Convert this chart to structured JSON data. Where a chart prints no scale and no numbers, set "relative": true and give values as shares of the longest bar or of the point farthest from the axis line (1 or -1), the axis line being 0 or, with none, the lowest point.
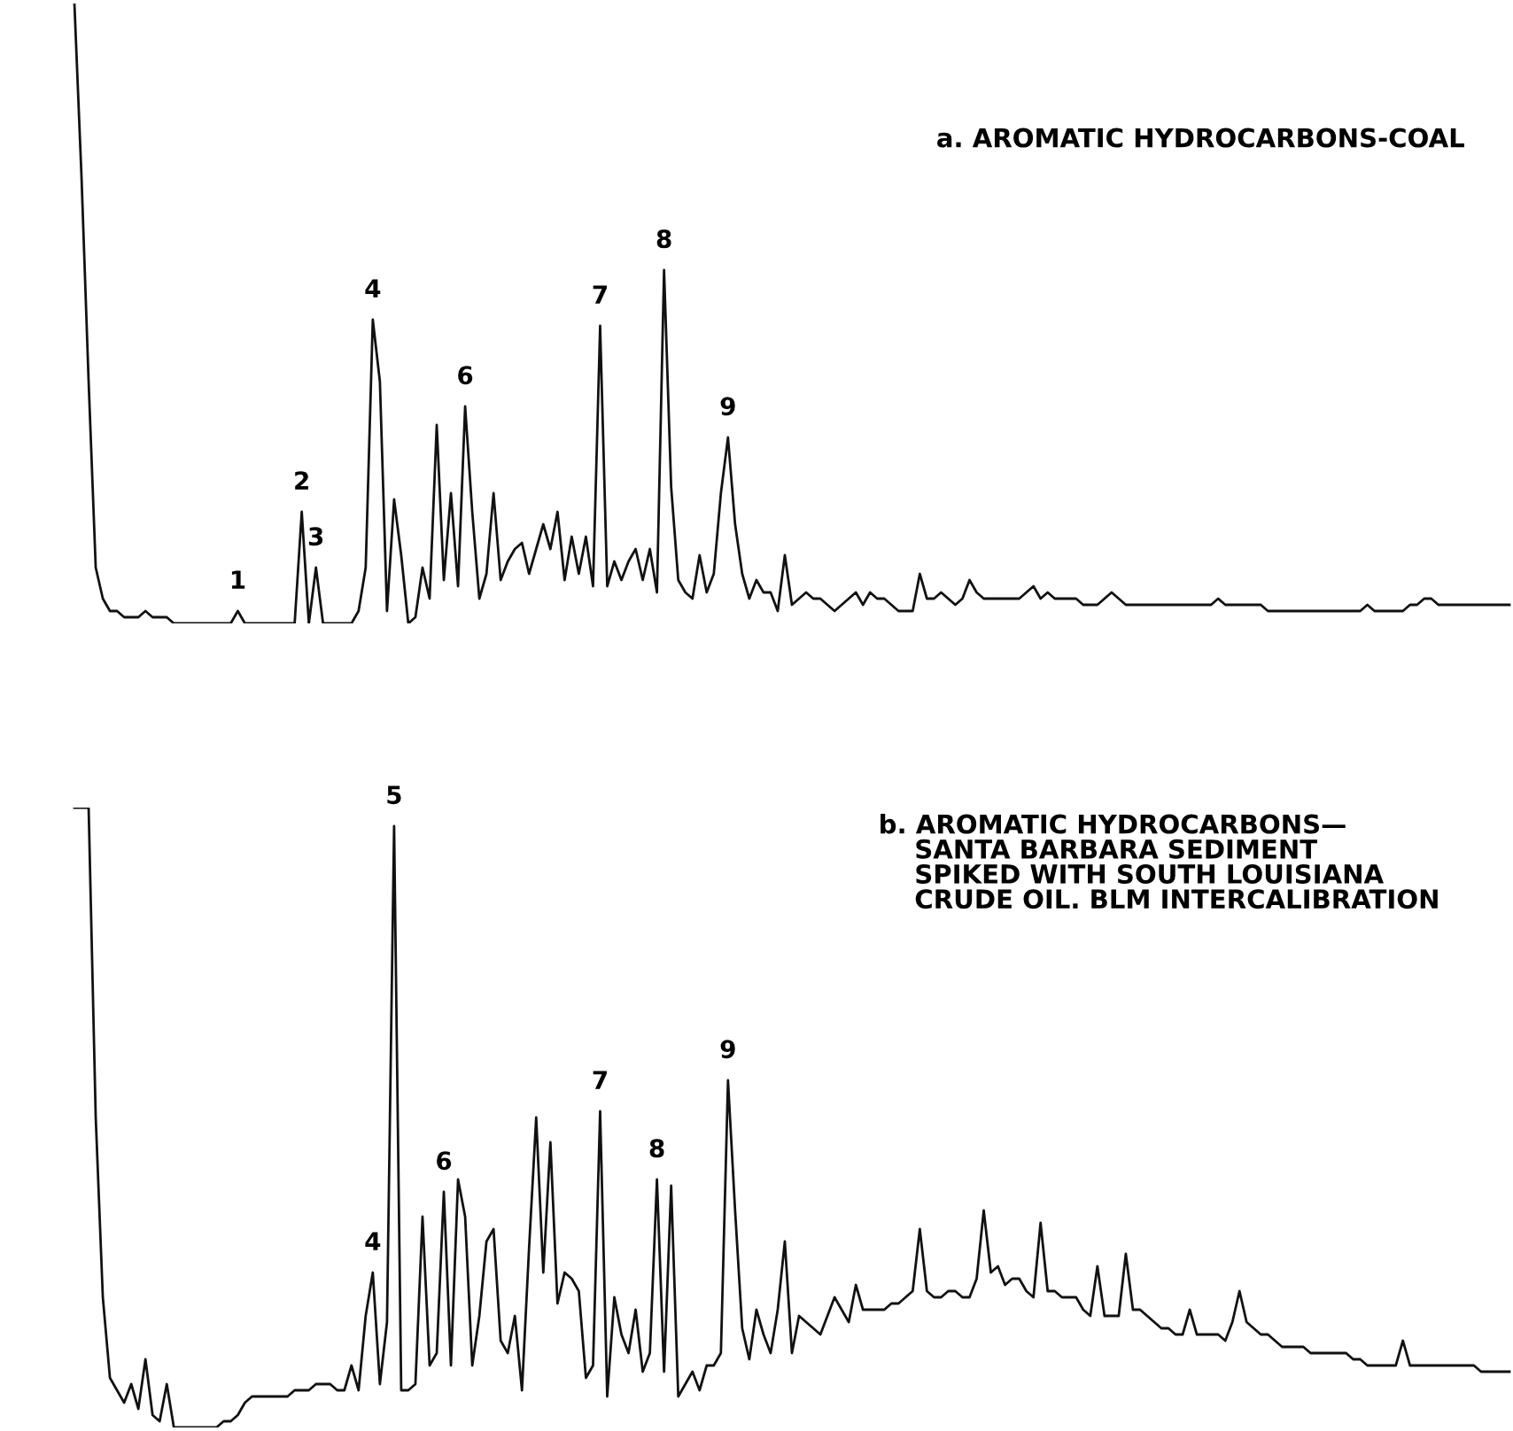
{
  "chart_data": [
    {
      "type": "line",
      "title": "a. AROMATIC HYDROCARBONS-COAL",
      "relative": true,
      "color": "#111111",
      "annotations": [
        {
          "text": "1",
          "y": 0.02
        },
        {
          "text": "2",
          "y": 0.18
        },
        {
          "text": "3",
          "y": 0.09
        },
        {
          "text": "4",
          "y": 0.49
        },
        {
          "text": "6",
          "y": 0.35
        },
        {
          "text": "7",
          "y": 0.48
        },
        {
          "text": "8",
          "y": 0.57
        },
        {
          "text": "9",
          "y": 0.3
        }
      ],
      "categories": [
        null,
        null,
        null,
        null,
        null,
        null,
        null,
        null,
        null,
        null,
        null,
        null,
        null,
        null,
        null,
        null,
        null,
        null,
        null,
        null,
        null,
        null,
        null,
        null,
        null,
        null,
        null,
        null,
        null,
        null,
        null,
        null,
        null,
        null,
        null,
        null,
        null,
        null,
        null,
        null,
        null,
        null,
        null,
        null,
        null,
        null,
        null,
        null,
        null,
        null,
        null,
        null,
        null,
        null,
        null,
        null,
        null,
        null,
        null,
        null,
        null,
        null,
        null,
        null,
        null,
        null,
        null,
        null,
        null,
        null,
        null,
        null,
        null,
        null,
        null,
        null,
        null,
        null,
        null,
        null,
        null,
        null,
        null,
        null,
        null,
        null,
        null,
        null,
        null,
        null,
        null,
        null,
        null,
        null,
        null,
        null,
        null,
        null,
        null,
        null,
        null,
        null,
        null,
        null,
        null,
        null,
        null,
        null,
        null,
        null,
        null,
        null,
        null,
        null,
        null,
        null,
        null,
        null,
        null,
        null,
        null,
        null,
        null,
        null,
        null,
        null,
        null,
        null,
        null,
        null,
        null,
        null,
        null,
        null,
        null,
        null,
        null,
        null,
        null,
        null,
        null,
        null,
        null,
        null,
        null,
        null,
        null,
        null,
        null,
        null,
        null,
        null,
        null,
        null,
        null,
        null,
        null,
        null,
        null,
        null,
        null,
        null,
        null,
        null,
        null,
        null,
        null,
        null,
        null,
        null,
        null,
        null,
        null,
        null,
        null,
        null,
        null,
        null,
        null,
        null,
        null,
        null,
        null,
        null,
        null,
        null,
        null,
        null,
        null,
        null,
        null,
        null,
        null,
        null,
        null,
        null,
        null,
        null,
        null,
        null,
        null,
        null,
        null
      ],
      "values": [
        1.0,
        0.72,
        0.39,
        0.09,
        0.04,
        0.02,
        0.02,
        0.01,
        0.01,
        0.01,
        0.02,
        0.01,
        0.01,
        0.01,
        0,
        0,
        0,
        0,
        0,
        0,
        0,
        0,
        0,
        0.02,
        0,
        0,
        0,
        0,
        0,
        0,
        0,
        0,
        0.18,
        0,
        0.09,
        0,
        0,
        0,
        0,
        0,
        0.02,
        0.09,
        0.49,
        0.39,
        0.02,
        0.2,
        0.11,
        0,
        0.01,
        0.09,
        0.04,
        0.32,
        0.07,
        0.21,
        0.06,
        0.35,
        0.18,
        0.04,
        0.08,
        0.21,
        0.07,
        0.1,
        0.12,
        0.13,
        0.08,
        0.12,
        0.16,
        0.12,
        0.18,
        0.07,
        0.14,
        0.08,
        0.14,
        0.06,
        0.48,
        0.06,
        0.1,
        0.07,
        0.1,
        0.12,
        0.07,
        0.12,
        0.05,
        0.57,
        0.22,
        0.07,
        0.05,
        0.04,
        0.11,
        0.05,
        0.08,
        0.21,
        0.3,
        0.16,
        0.08,
        0.04,
        0.07,
        0.05,
        0.05,
        0.02,
        0.11,
        0.03,
        0.04,
        0.05,
        0.04,
        0.04,
        0.03,
        0.02,
        0.03,
        0.04,
        0.05,
        0.03,
        0.05,
        0.04,
        0.04,
        0.03,
        0.02,
        0.02,
        0.02,
        0.08,
        0.04,
        0.04,
        0.05,
        0.04,
        0.03,
        0.04,
        0.07,
        0.05,
        0.04,
        0.04,
        0.04,
        0.04,
        0.04,
        0.04,
        0.05,
        0.06,
        0.04,
        0.05,
        0.04,
        0.04,
        0.04,
        0.04,
        0.03,
        0.03,
        0.03,
        0.04,
        0.05,
        0.04,
        0.03,
        0.03,
        0.03,
        0.03,
        0.03,
        0.03,
        0.03,
        0.03,
        0.03,
        0.03,
        0.03,
        0.03,
        0.03,
        0.04,
        0.03,
        0.03,
        0.03,
        0.03,
        0.03,
        0.03,
        0.02,
        0.02,
        0.02,
        0.02,
        0.02,
        0.02,
        0.02,
        0.02,
        0.02,
        0.02,
        0.02,
        0.02,
        0.02,
        0.02,
        0.03,
        0.02,
        0.02,
        0.02,
        0.02,
        0.02,
        0.03,
        0.03,
        0.04,
        0.04,
        0.03,
        0.03,
        0.03,
        0.03,
        0.03,
        0.03,
        0.03,
        0.03,
        0.03,
        0.03,
        0.03
      ]
    },
    {
      "type": "line",
      "title": "b. AROMATIC HYDROCARBONS—\n    SANTA BARBARA SEDIMENT\n    SPIKED WITH SOUTH LOUISIANA\n    CRUDE OIL. BLM INTERCALIBRATION",
      "relative": true,
      "color": "#111111",
      "annotations": [
        {
          "text": "4",
          "y": 0.25
        },
        {
          "text": "5",
          "y": 0.97
        },
        {
          "text": "6",
          "y": 0.38
        },
        {
          "text": "7",
          "y": 0.51
        },
        {
          "text": "8",
          "y": 0.4
        },
        {
          "text": "9",
          "y": 0.56
        }
      ],
      "categories": [
        null,
        null,
        null,
        null,
        null,
        null,
        null,
        null,
        null,
        null,
        null,
        null,
        null,
        null,
        null,
        null,
        null,
        null,
        null,
        null,
        null,
        null,
        null,
        null,
        null,
        null,
        null,
        null,
        null,
        null,
        null,
        null,
        null,
        null,
        null,
        null,
        null,
        null,
        null,
        null,
        null,
        null,
        null,
        null,
        null,
        null,
        null,
        null,
        null,
        null,
        null,
        null,
        null,
        null,
        null,
        null,
        null,
        null,
        null,
        null,
        null,
        null,
        null,
        null,
        null,
        null,
        null,
        null,
        null,
        null,
        null,
        null,
        null,
        null,
        null,
        null,
        null,
        null,
        null,
        null,
        null,
        null,
        null,
        null,
        null,
        null,
        null,
        null,
        null,
        null,
        null,
        null,
        null,
        null,
        null,
        null,
        null,
        null,
        null,
        null,
        null,
        null,
        null,
        null,
        null,
        null,
        null,
        null,
        null,
        null,
        null,
        null,
        null,
        null,
        null,
        null,
        null,
        null,
        null,
        null,
        null,
        null,
        null,
        null,
        null,
        null,
        null,
        null,
        null,
        null,
        null,
        null,
        null,
        null,
        null,
        null,
        null,
        null,
        null,
        null,
        null,
        null,
        null,
        null,
        null,
        null,
        null,
        null,
        null,
        null,
        null,
        null,
        null,
        null,
        null,
        null,
        null,
        null,
        null,
        null,
        null,
        null,
        null,
        null,
        null,
        null,
        null,
        null,
        null,
        null,
        null,
        null,
        null,
        null,
        null,
        null,
        null,
        null,
        null,
        null,
        null,
        null,
        null,
        null,
        null,
        null,
        null,
        null,
        null,
        null,
        null,
        null,
        null,
        null,
        null,
        null,
        null,
        null,
        null,
        null,
        null,
        null,
        null
      ],
      "values": [
        1,
        1,
        1,
        0.5,
        0.21,
        0.08,
        0.06,
        0.04,
        0.07,
        0.03,
        0.11,
        0.02,
        0.01,
        0.07,
        0,
        0,
        0,
        0,
        0,
        0,
        0,
        0.01,
        0.01,
        0.02,
        0.04,
        0.05,
        0.05,
        0.05,
        0.05,
        0.05,
        0.05,
        0.06,
        0.06,
        0.06,
        0.07,
        0.07,
        0.07,
        0.06,
        0.06,
        0.1,
        0.06,
        0.18,
        0.25,
        0.07,
        0.17,
        0.97,
        0.06,
        0.06,
        0.07,
        0.34,
        0.1,
        0.12,
        0.38,
        0.1,
        0.4,
        0.34,
        0.1,
        0.18,
        0.3,
        0.32,
        0.14,
        0.12,
        0.18,
        0.06,
        0.29,
        0.5,
        0.25,
        0.46,
        0.2,
        0.25,
        0.24,
        0.22,
        0.08,
        0.1,
        0.51,
        0.05,
        0.21,
        0.15,
        0.12,
        0.19,
        0.09,
        0.12,
        0.4,
        0.09,
        0.39,
        0.05,
        0.07,
        0.09,
        0.06,
        0.1,
        0.1,
        0.12,
        0.56,
        0.35,
        0.16,
        0.11,
        0.19,
        0.15,
        0.12,
        0.19,
        0.3,
        0.12,
        0.18,
        0.17,
        0.16,
        0.15,
        0.18,
        0.21,
        0.19,
        0.17,
        0.23,
        0.19,
        0.19,
        0.19,
        0.19,
        0.2,
        0.2,
        0.21,
        0.22,
        0.32,
        0.22,
        0.21,
        0.21,
        0.22,
        0.22,
        0.21,
        0.21,
        0.24,
        0.35,
        0.25,
        0.26,
        0.23,
        0.24,
        0.24,
        0.22,
        0.21,
        0.33,
        0.22,
        0.22,
        0.21,
        0.21,
        0.21,
        0.19,
        0.18,
        0.26,
        0.18,
        0.18,
        0.18,
        0.28,
        0.19,
        0.19,
        0.18,
        0.17,
        0.16,
        0.16,
        0.15,
        0.15,
        0.19,
        0.15,
        0.15,
        0.15,
        0.15,
        0.14,
        0.17,
        0.22,
        0.17,
        0.16,
        0.15,
        0.15,
        0.14,
        0.13,
        0.13,
        0.13,
        0.13,
        0.12,
        0.12,
        0.12,
        0.12,
        0.12,
        0.12,
        0.11,
        0.11,
        0.1,
        0.1,
        0.1,
        0.1,
        0.1,
        0.14,
        0.1,
        0.1,
        0.1,
        0.1,
        0.1,
        0.1,
        0.1,
        0.1,
        0.1,
        0.1,
        0.09,
        0.09,
        0.09,
        0.09,
        0.09
      ]
    }
  ]
}
